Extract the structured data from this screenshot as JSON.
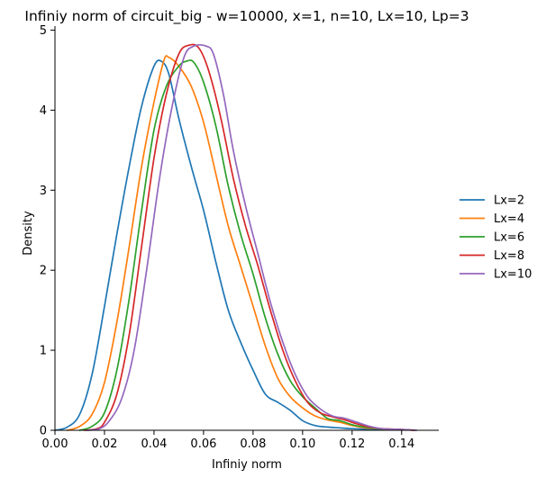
{
  "chart_data": {
    "type": "line",
    "title": "Infiniy norm of circuit_big - w=10000, x=1, n=10, Lx=10, Lp=3",
    "xlabel": "Infiniy norm",
    "ylabel": "Density",
    "xlim": [
      0.0,
      0.155
    ],
    "ylim": [
      0,
      5.05
    ],
    "xticks": [
      0.0,
      0.02,
      0.04,
      0.06,
      0.08,
      0.1,
      0.12,
      0.14
    ],
    "xtick_labels": [
      "0.00",
      "0.02",
      "0.04",
      "0.06",
      "0.08",
      "0.10",
      "0.12",
      "0.14"
    ],
    "yticks": [
      0,
      1,
      2,
      3,
      4,
      5
    ],
    "ytick_labels": [
      "0",
      "1",
      "2",
      "3",
      "4",
      "5"
    ],
    "grid": false,
    "legend_position": "right",
    "series": [
      {
        "name": "Lx=2",
        "color": "#1f77b4",
        "points": [
          [
            0.0,
            0.0
          ],
          [
            0.005,
            0.04
          ],
          [
            0.01,
            0.2
          ],
          [
            0.015,
            0.7
          ],
          [
            0.02,
            1.55
          ],
          [
            0.025,
            2.45
          ],
          [
            0.03,
            3.3
          ],
          [
            0.035,
            4.05
          ],
          [
            0.04,
            4.55
          ],
          [
            0.043,
            4.61
          ],
          [
            0.046,
            4.45
          ],
          [
            0.05,
            3.9
          ],
          [
            0.055,
            3.3
          ],
          [
            0.06,
            2.75
          ],
          [
            0.065,
            2.1
          ],
          [
            0.07,
            1.5
          ],
          [
            0.075,
            1.1
          ],
          [
            0.08,
            0.75
          ],
          [
            0.085,
            0.45
          ],
          [
            0.09,
            0.35
          ],
          [
            0.095,
            0.25
          ],
          [
            0.1,
            0.12
          ],
          [
            0.105,
            0.06
          ],
          [
            0.11,
            0.04
          ],
          [
            0.115,
            0.03
          ],
          [
            0.12,
            0.02
          ],
          [
            0.13,
            0.01
          ],
          [
            0.14,
            0.005
          ]
        ]
      },
      {
        "name": "Lx=4",
        "color": "#ff7f0e",
        "points": [
          [
            0.005,
            0.0
          ],
          [
            0.01,
            0.05
          ],
          [
            0.015,
            0.2
          ],
          [
            0.02,
            0.6
          ],
          [
            0.025,
            1.35
          ],
          [
            0.03,
            2.3
          ],
          [
            0.035,
            3.3
          ],
          [
            0.04,
            4.1
          ],
          [
            0.044,
            4.62
          ],
          [
            0.046,
            4.66
          ],
          [
            0.05,
            4.55
          ],
          [
            0.055,
            4.3
          ],
          [
            0.06,
            3.85
          ],
          [
            0.065,
            3.2
          ],
          [
            0.07,
            2.55
          ],
          [
            0.075,
            2.05
          ],
          [
            0.08,
            1.55
          ],
          [
            0.085,
            1.05
          ],
          [
            0.09,
            0.65
          ],
          [
            0.095,
            0.42
          ],
          [
            0.1,
            0.28
          ],
          [
            0.105,
            0.18
          ],
          [
            0.11,
            0.13
          ],
          [
            0.115,
            0.1
          ],
          [
            0.12,
            0.06
          ],
          [
            0.125,
            0.03
          ],
          [
            0.13,
            0.02
          ],
          [
            0.14,
            0.01
          ],
          [
            0.145,
            0.0
          ]
        ]
      },
      {
        "name": "Lx=6",
        "color": "#2ca02c",
        "points": [
          [
            0.01,
            0.0
          ],
          [
            0.015,
            0.05
          ],
          [
            0.02,
            0.22
          ],
          [
            0.025,
            0.75
          ],
          [
            0.03,
            1.65
          ],
          [
            0.035,
            2.75
          ],
          [
            0.04,
            3.75
          ],
          [
            0.045,
            4.3
          ],
          [
            0.05,
            4.55
          ],
          [
            0.053,
            4.61
          ],
          [
            0.056,
            4.6
          ],
          [
            0.06,
            4.35
          ],
          [
            0.065,
            3.8
          ],
          [
            0.07,
            3.05
          ],
          [
            0.075,
            2.45
          ],
          [
            0.08,
            1.95
          ],
          [
            0.085,
            1.4
          ],
          [
            0.09,
            0.95
          ],
          [
            0.095,
            0.62
          ],
          [
            0.1,
            0.42
          ],
          [
            0.105,
            0.28
          ],
          [
            0.11,
            0.15
          ],
          [
            0.115,
            0.12
          ],
          [
            0.12,
            0.07
          ],
          [
            0.125,
            0.04
          ],
          [
            0.13,
            0.02
          ],
          [
            0.14,
            0.01
          ]
        ]
      },
      {
        "name": "Lx=8",
        "color": "#d62728",
        "points": [
          [
            0.012,
            0.0
          ],
          [
            0.017,
            0.02
          ],
          [
            0.02,
            0.1
          ],
          [
            0.025,
            0.45
          ],
          [
            0.03,
            1.2
          ],
          [
            0.035,
            2.3
          ],
          [
            0.04,
            3.4
          ],
          [
            0.045,
            4.2
          ],
          [
            0.05,
            4.7
          ],
          [
            0.054,
            4.81
          ],
          [
            0.058,
            4.78
          ],
          [
            0.062,
            4.5
          ],
          [
            0.067,
            3.9
          ],
          [
            0.072,
            3.15
          ],
          [
            0.077,
            2.55
          ],
          [
            0.082,
            2.05
          ],
          [
            0.087,
            1.5
          ],
          [
            0.092,
            1.0
          ],
          [
            0.097,
            0.62
          ],
          [
            0.102,
            0.35
          ],
          [
            0.107,
            0.22
          ],
          [
            0.112,
            0.17
          ],
          [
            0.117,
            0.13
          ],
          [
            0.122,
            0.08
          ],
          [
            0.127,
            0.04
          ],
          [
            0.132,
            0.02
          ],
          [
            0.14,
            0.01
          ],
          [
            0.145,
            0.0
          ]
        ]
      },
      {
        "name": "Lx=10",
        "color": "#9467bd",
        "points": [
          [
            0.013,
            0.0
          ],
          [
            0.018,
            0.02
          ],
          [
            0.022,
            0.12
          ],
          [
            0.027,
            0.4
          ],
          [
            0.032,
            1.0
          ],
          [
            0.037,
            2.0
          ],
          [
            0.042,
            3.1
          ],
          [
            0.047,
            4.0
          ],
          [
            0.052,
            4.65
          ],
          [
            0.056,
            4.8
          ],
          [
            0.061,
            4.8
          ],
          [
            0.064,
            4.7
          ],
          [
            0.068,
            4.2
          ],
          [
            0.072,
            3.5
          ],
          [
            0.077,
            2.8
          ],
          [
            0.082,
            2.2
          ],
          [
            0.087,
            1.6
          ],
          [
            0.092,
            1.1
          ],
          [
            0.097,
            0.7
          ],
          [
            0.102,
            0.42
          ],
          [
            0.107,
            0.27
          ],
          [
            0.112,
            0.18
          ],
          [
            0.117,
            0.15
          ],
          [
            0.122,
            0.1
          ],
          [
            0.127,
            0.05
          ],
          [
            0.132,
            0.02
          ],
          [
            0.14,
            0.01
          ],
          [
            0.146,
            0.0
          ]
        ]
      }
    ]
  }
}
